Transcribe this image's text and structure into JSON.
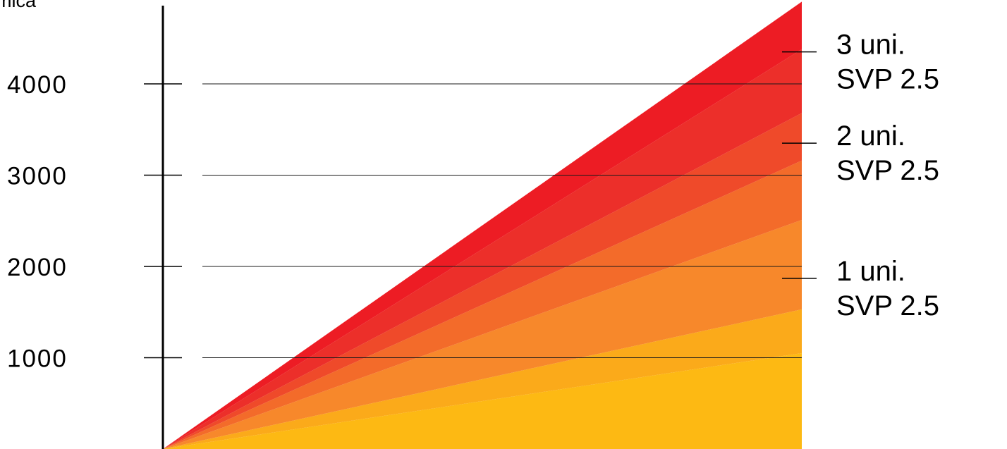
{
  "chart_data": {
    "type": "area",
    "stacked": true,
    "ylabel": "ermica",
    "xlabel": "",
    "ylim": [
      0,
      4900
    ],
    "grid": true,
    "y_ticks": [
      1000,
      2000,
      3000,
      4000
    ],
    "y_tick_labels": [
      "1000",
      "2000",
      "3000",
      "4000"
    ],
    "x": [
      0,
      1
    ],
    "colors": [
      "#fdb913",
      "#fbaa1a",
      "#f7882b",
      "#f36b2a",
      "#ef4a2a",
      "#ec2f2a",
      "#ed1c24"
    ],
    "series": [
      {
        "values": [
          0,
          1050
        ]
      },
      {
        "values": [
          0,
          480
        ]
      },
      {
        "values": [
          0,
          980
        ]
      },
      {
        "values": [
          0,
          650
        ]
      },
      {
        "values": [
          0,
          520
        ]
      },
      {
        "values": [
          0,
          700
        ]
      },
      {
        "values": [
          0,
          520
        ]
      }
    ],
    "annotations": [
      {
        "line1": "3 uni.",
        "line2": "SVP 2.5",
        "value": 4350
      },
      {
        "line1": "2 uni.",
        "line2": "SVP 2.5",
        "value": 3350
      },
      {
        "line1": "1 uni.",
        "line2": "SVP 2.5",
        "value": 1870
      }
    ]
  }
}
